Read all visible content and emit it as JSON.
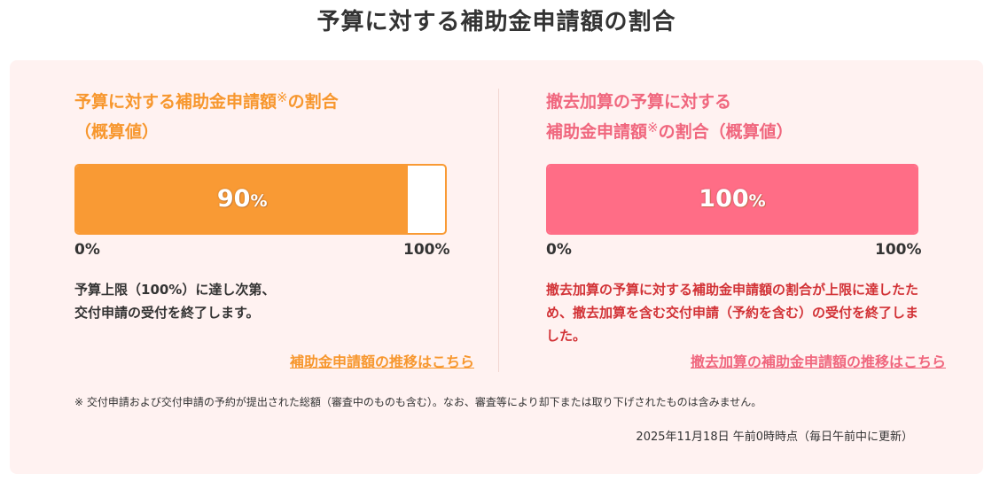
{
  "page_title": "予算に対する補助金申請額の割合",
  "left_card": {
    "title_part1": "予算に対する補助金申請額",
    "title_sup": "※",
    "title_part2": "の割合",
    "title_line2": "（概算値）",
    "progress_value": 90,
    "progress_number": "90",
    "progress_unit": "%",
    "axis_min": "0%",
    "axis_max": "100%",
    "description_line1": "予算上限（100%）に達し次第、",
    "description_line2": "交付申請の受付を終了します。",
    "link_text": "補助金申請額の推移はこちら",
    "color": "#f99a34"
  },
  "right_card": {
    "title_line1": "撤去加算の予算に対する",
    "title_part1": "補助金申請額",
    "title_sup": "※",
    "title_part2": "の割合（概算値）",
    "progress_value": 100,
    "progress_number": "100",
    "progress_unit": "%",
    "axis_min": "0%",
    "axis_max": "100%",
    "description": "撤去加算の予算に対する補助金申請額の割合が上限に達したため、撤去加算を含む交付申請（予約を含む）の受付を終了しました。",
    "link_text": "撤去加算の補助金申請額の推移はこちら",
    "color": "#ff6d86"
  },
  "footnote": "※ 交付申請および交付申請の予約が提出された総額（審査中のものも含む）。なお、審査等により却下または取り下げされたものは含みません。",
  "updated_text": "2025年11月18日 午前0時時点（毎日午前中に更新）"
}
